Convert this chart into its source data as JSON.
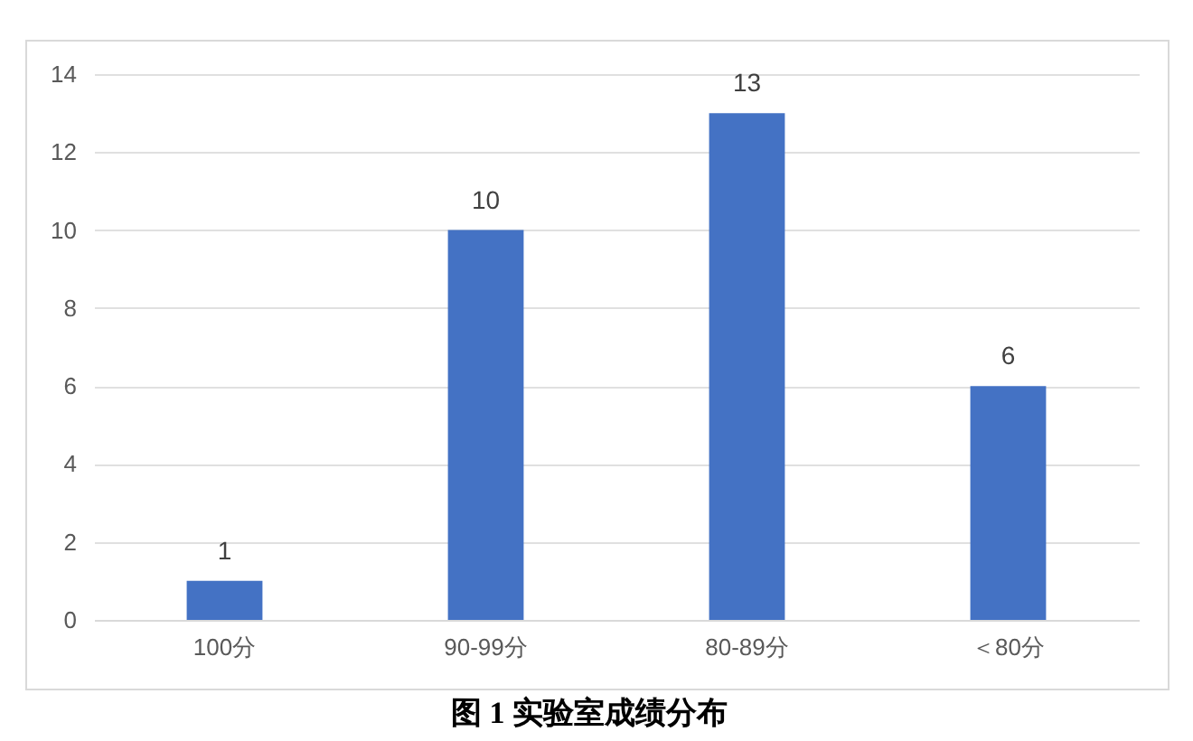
{
  "chart_data": {
    "type": "bar",
    "title": "图 1 实验室成绩分布",
    "categories": [
      "100分",
      "90-99分",
      "80-89分",
      "＜80分"
    ],
    "values": [
      1,
      10,
      13,
      6
    ],
    "color": "#4472c4",
    "ylim": [
      0,
      14
    ],
    "yticks": [
      0,
      2,
      4,
      6,
      8,
      10,
      12,
      14
    ],
    "grid": "y",
    "data_labels": true
  }
}
